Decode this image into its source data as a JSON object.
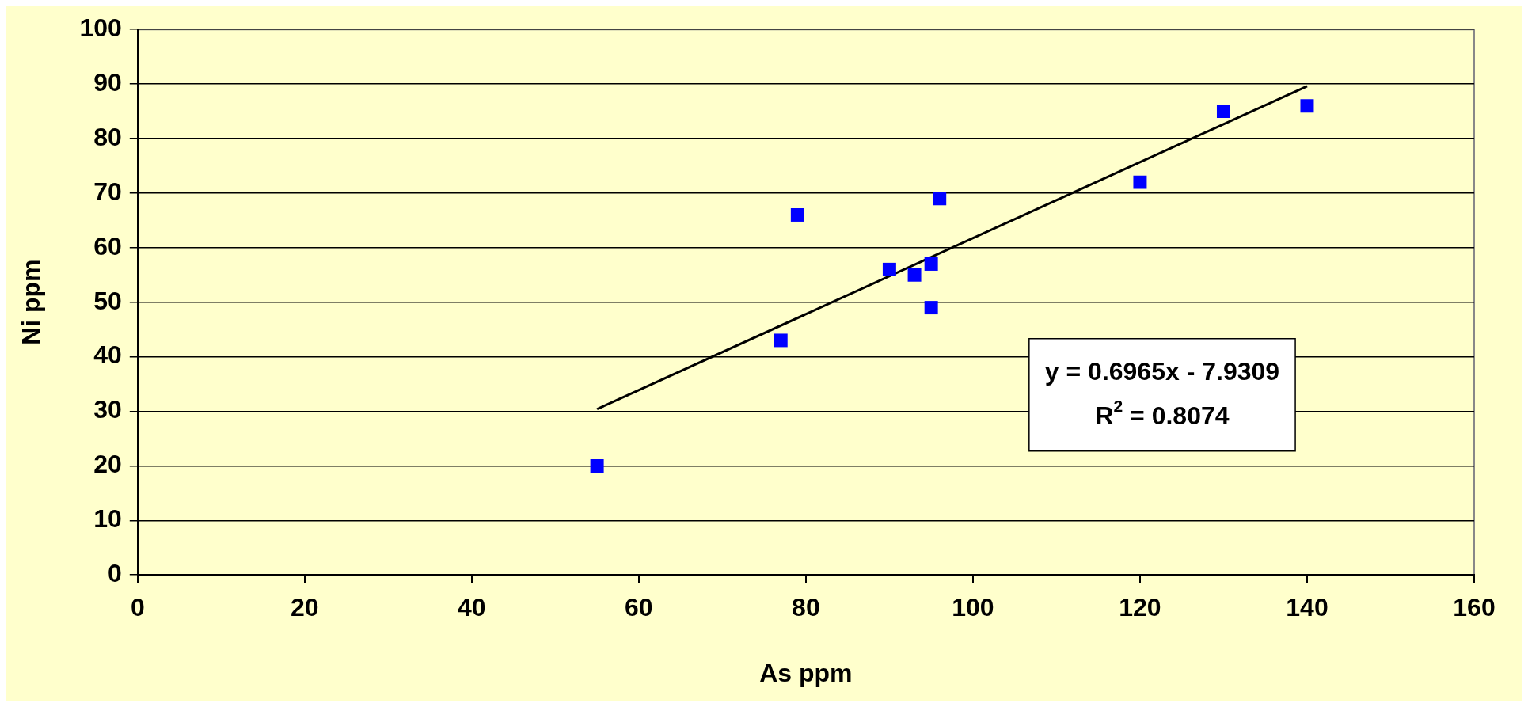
{
  "chart_data": {
    "type": "scatter",
    "xlabel": "As ppm",
    "ylabel": "Ni ppm",
    "series": [
      {
        "color": "#0000ff",
        "marker": "square",
        "x": [
          55,
          77,
          79,
          90,
          93,
          95,
          95,
          96,
          120,
          130,
          140
        ],
        "values": [
          20,
          43,
          66,
          56,
          55,
          57,
          49,
          69,
          72,
          85,
          86
        ]
      },
      {
        "type": "line",
        "color": "#000000",
        "marker": "none",
        "x": [
          55,
          140
        ],
        "values": [
          30.4,
          89.6
        ]
      }
    ],
    "xlim": [
      0,
      160
    ],
    "xticks": [
      0,
      20,
      40,
      60,
      80,
      100,
      120,
      140,
      160
    ],
    "ylim": [
      0,
      100
    ],
    "yticks": [
      0,
      10,
      20,
      30,
      40,
      50,
      60,
      70,
      80,
      90,
      100
    ],
    "grid": "y",
    "legend": false,
    "annotations": [
      "y = 0.6965x - 7.9309",
      "R$^{2}$ = 0.8074"
    ]
  }
}
